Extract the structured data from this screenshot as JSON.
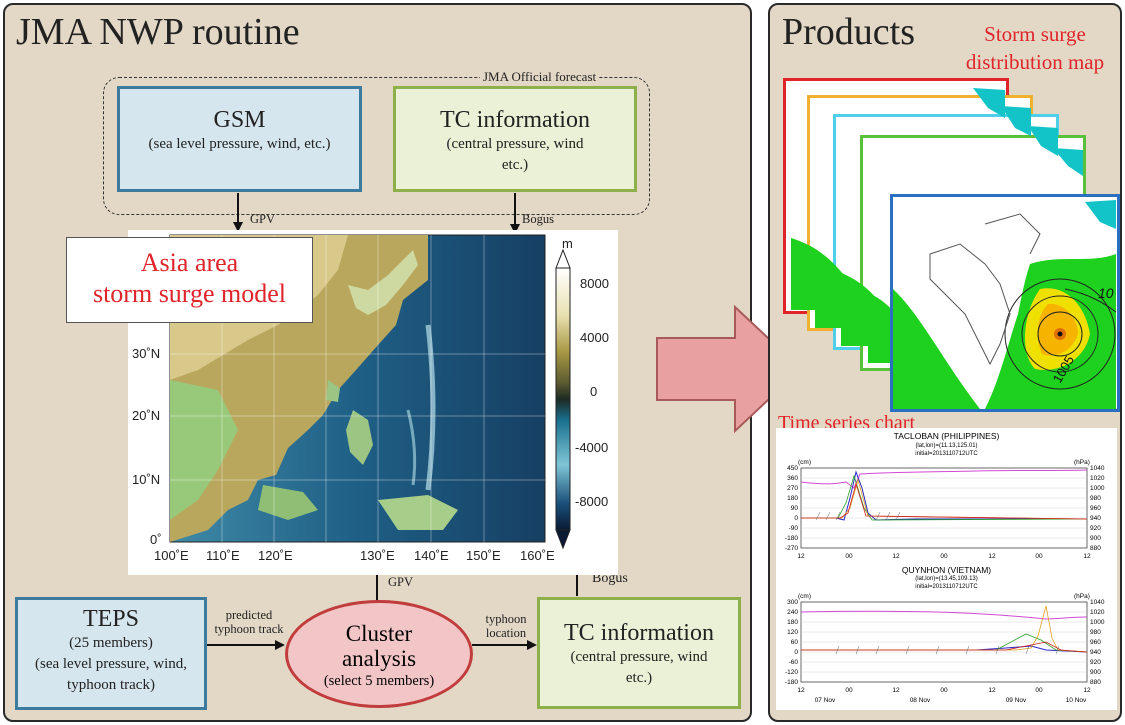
{
  "left_panel": {
    "title": "JMA NWP routine",
    "official_forecast": "JMA Official forecast"
  },
  "gsm": {
    "title": "GSM",
    "subtitle": "(sea level pressure, wind, etc.)"
  },
  "tc_top": {
    "title": "TC information",
    "subtitle": "(central pressure, wind etc.)"
  },
  "arrow_labels": {
    "gpv_top": "GPV",
    "bogus_top": "Bogus",
    "gpv_bottom": "GPV",
    "bogus_bottom": "Bogus",
    "predicted_track": "predicted typhoon track",
    "typhoon_location": "typhoon location"
  },
  "model": {
    "title_line1": "Asia area",
    "title_line2": "storm surge model"
  },
  "map": {
    "unit": "m",
    "colorbar_ticks": [
      "8000",
      "4000",
      "0",
      "-4000",
      "-8000"
    ],
    "lat_ticks": [
      "30˚N",
      "20˚N",
      "10˚N",
      "0˚"
    ],
    "lon_ticks": [
      "100˚E",
      "110˚E",
      "120˚E",
      "130˚E",
      "140˚E",
      "150˚E",
      "160˚E"
    ]
  },
  "teps": {
    "title": "TEPS",
    "members": "(25 members)",
    "subtitle": "(sea level pressure, wind, typhoon track)"
  },
  "cluster": {
    "title_line1": "Cluster",
    "title_line2": "analysis",
    "subtitle": "(select 5 members)"
  },
  "tc_bottom": {
    "title": "TC information",
    "subtitle": "(central pressure, wind etc.)"
  },
  "right_panel": {
    "title": "Products",
    "storm_surge_label": "Storm surge distribution map",
    "contour_labels": [
      "10",
      "1005"
    ],
    "time_series_label": "Time series chart"
  },
  "chart1": {
    "title": "TACLOBAN (PHILIPPINES)",
    "sub1": "(lat,lon)=(11.13,125.01)",
    "sub2": "initial=2013110712UTC",
    "left_unit": "(cm)",
    "right_unit": "(hPa)",
    "left_ticks": [
      "450",
      "360",
      "270",
      "180",
      "90",
      "0",
      "-90",
      "-180",
      "-270"
    ],
    "right_ticks": [
      "1040",
      "1020",
      "1000",
      "980",
      "960",
      "940",
      "920",
      "900",
      "880"
    ],
    "x_ticks": [
      "12",
      "00",
      "12",
      "00",
      "12",
      "00",
      "12"
    ]
  },
  "chart2": {
    "title": "QUYNHON (VIETNAM)",
    "sub1": "(lat,lon)=(13.45,109.13)",
    "sub2": "initial=2013110712UTC",
    "left_unit": "(cm)",
    "right_unit": "(hPa)",
    "left_ticks": [
      "300",
      "240",
      "180",
      "120",
      "60",
      "0",
      "-60",
      "-120",
      "-180"
    ],
    "right_ticks": [
      "1040",
      "1020",
      "1000",
      "980",
      "960",
      "940",
      "920",
      "900",
      "880"
    ],
    "x_ticks": [
      "12",
      "00",
      "12",
      "00",
      "12",
      "00",
      "12"
    ],
    "date_ticks": [
      "07 Nov",
      "08 Nov",
      "09 Nov",
      "10 Nov"
    ]
  },
  "colors": {
    "accent_red": "#e0242a",
    "panel_bg": "#e3d8c6",
    "arrow_pink": "#e8a0a0"
  }
}
